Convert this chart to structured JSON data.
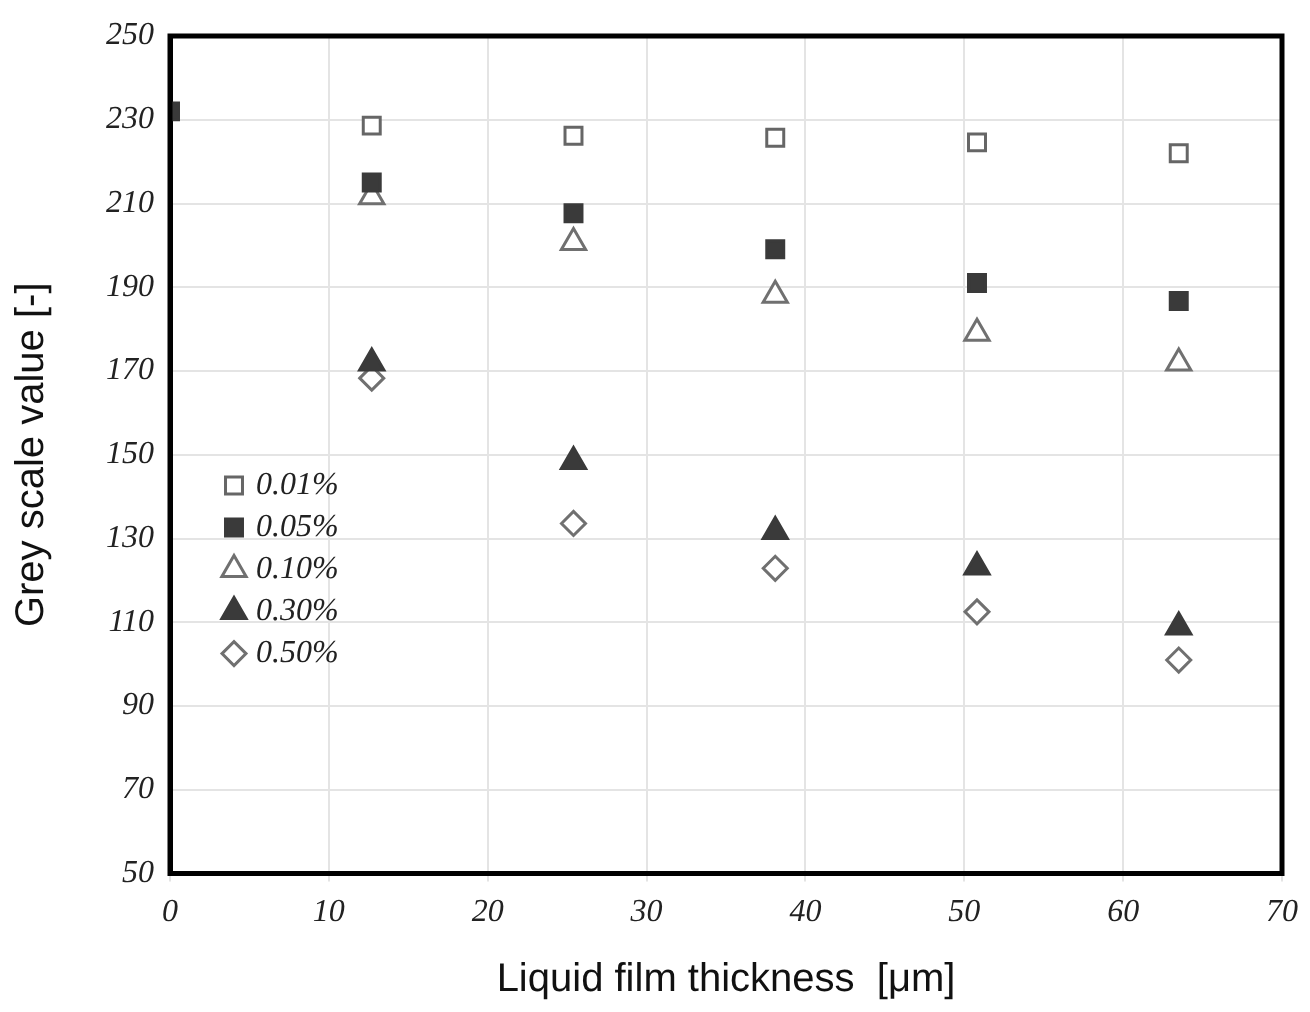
{
  "chart_data": {
    "type": "scatter",
    "xlabel": "Liquid film thickness  [μm]",
    "ylabel": "Grey scale value [-]",
    "x": [
      0,
      12.7,
      25.4,
      38.1,
      50.8,
      63.5
    ],
    "xlim": [
      0,
      70
    ],
    "xticks": [
      0,
      10,
      20,
      30,
      40,
      50,
      60,
      70
    ],
    "ylim": [
      50,
      250
    ],
    "yticks": [
      50,
      70,
      90,
      110,
      130,
      150,
      170,
      190,
      210,
      230,
      250
    ],
    "grid": true,
    "legend": "bottom left",
    "series": [
      {
        "name": "0.01%",
        "color": "#666666",
        "marker": "square",
        "values": [
          null,
          228.6,
          226.2,
          225.7,
          224.6,
          222
        ]
      },
      {
        "name": "0.05%",
        "color": "#3a3a3a",
        "marker": "square",
        "values": [
          232,
          215,
          207.7,
          199.1,
          191,
          186.7
        ]
      },
      {
        "name": "0.10%",
        "color": "#707070",
        "marker": "triangle",
        "values": [
          null,
          211.6,
          200.7,
          188.1,
          179,
          171.9
        ]
      },
      {
        "name": "0.30%",
        "color": "#3a3a3a",
        "marker": "triangle",
        "values": [
          null,
          171.9,
          148.4,
          131.7,
          123.2,
          108.9
        ]
      },
      {
        "name": "0.50%",
        "color": "#707070",
        "marker": "diamond",
        "values": [
          null,
          168.3,
          133.6,
          122.9,
          112.5,
          101
        ]
      }
    ]
  }
}
